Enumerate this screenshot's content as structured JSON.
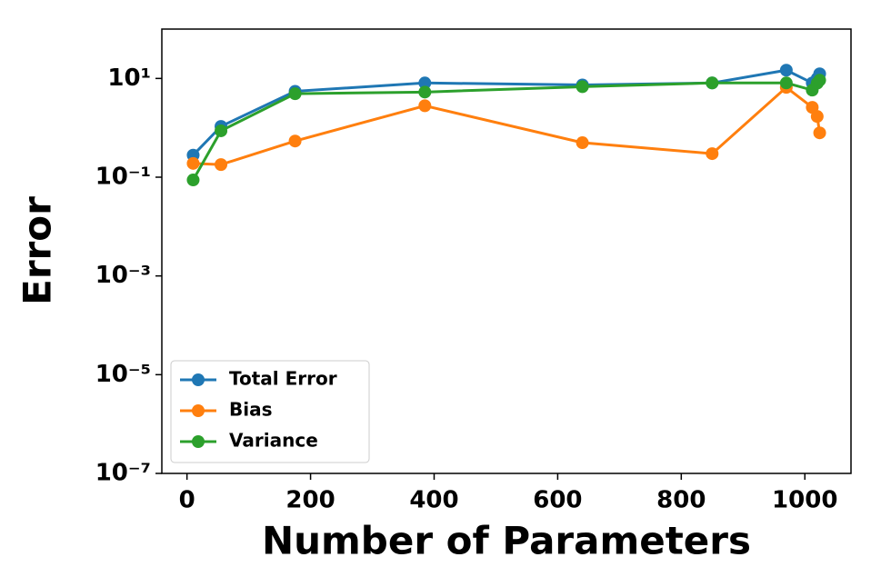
{
  "chart_data": {
    "type": "line",
    "xlabel": "Number of Parameters",
    "ylabel": "Error",
    "x": [
      10,
      55,
      175,
      385,
      640,
      850,
      970,
      1012,
      1020,
      1024
    ],
    "series": [
      {
        "name": "Total Error",
        "color": "#1f77b4",
        "values": [
          0.28,
          1.07,
          5.5,
          8.1,
          7.4,
          8.1,
          14.7,
          8.1,
          10,
          12.4
        ]
      },
      {
        "name": "Bias",
        "color": "#ff7f0e",
        "values": [
          0.19,
          0.18,
          0.54,
          2.8,
          0.5,
          0.3,
          6.6,
          2.6,
          1.7,
          0.79
        ]
      },
      {
        "name": "Variance",
        "color": "#2ca02c",
        "values": [
          0.088,
          0.87,
          4.9,
          5.3,
          6.8,
          8.1,
          8.1,
          5.8,
          8.0,
          9.2
        ]
      }
    ],
    "xlim": [
      -40.7,
      1074.7
    ],
    "xticks": [
      0,
      200,
      400,
      600,
      800,
      1000
    ],
    "ylim": [
      1e-07,
      100
    ],
    "ylog": true,
    "yticks": [
      {
        "value": 1e-07,
        "label": "10⁻⁷"
      },
      {
        "value": 1e-05,
        "label": "10⁻⁵"
      },
      {
        "value": 0.001,
        "label": "10⁻³"
      },
      {
        "value": 0.1,
        "label": "10⁻¹"
      },
      {
        "value": 10,
        "label": "10¹"
      }
    ],
    "legend": "lower left",
    "grid": false
  }
}
